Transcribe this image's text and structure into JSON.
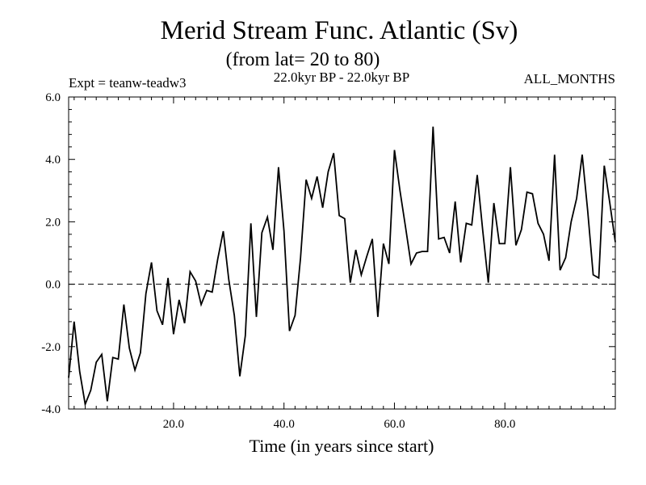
{
  "chart_data": {
    "type": "line",
    "title": "Merid Stream Func. Atlantic (Sv)",
    "subtitle": "(from lat= 20 to 80)",
    "header_left": "Expt = teanw-teadw3",
    "header_center": "22.0kyr BP - 22.0kyr BP",
    "header_right": "ALL_MONTHS",
    "xlabel": "Time (in years since start)",
    "ylabel": "",
    "xlim": [
      1,
      100
    ],
    "ylim": [
      -4.0,
      6.0
    ],
    "x_ticks": [
      20,
      40,
      60,
      80
    ],
    "x_tick_labels": [
      "20.0",
      "40.0",
      "60.0",
      "80.0"
    ],
    "y_ticks": [
      -4,
      -2,
      0,
      2,
      4,
      6
    ],
    "y_tick_labels": [
      "-4.0",
      "-2.0",
      "0.0",
      "2.0",
      "4.0",
      "6.0"
    ],
    "zero_line": "dashed",
    "series": [
      {
        "name": "Merid Stream Func. Atlantic",
        "values": [
          -3.0,
          -1.2,
          -2.8,
          -3.85,
          -3.4,
          -2.5,
          -2.25,
          -3.75,
          -2.35,
          -2.4,
          -0.65,
          -2.05,
          -2.75,
          -2.2,
          -0.3,
          0.7,
          -0.85,
          -1.3,
          0.2,
          -1.6,
          -0.5,
          -1.25,
          0.4,
          0.1,
          -0.65,
          -0.2,
          -0.25,
          0.8,
          1.7,
          0.15,
          -1.0,
          -2.95,
          -1.65,
          1.95,
          -1.05,
          1.65,
          2.15,
          1.1,
          3.75,
          1.7,
          -1.5,
          -1.0,
          0.85,
          3.35,
          2.75,
          3.45,
          2.45,
          3.6,
          4.2,
          2.2,
          2.1,
          0.05,
          1.1,
          0.3,
          0.9,
          1.45,
          -1.05,
          1.3,
          0.65,
          4.3,
          3.0,
          1.85,
          0.65,
          1.0,
          1.05,
          1.05,
          5.05,
          1.45,
          1.5,
          1.0,
          2.65,
          0.7,
          1.95,
          1.9,
          3.5,
          1.7,
          0.05,
          2.6,
          1.3,
          1.3,
          3.75,
          1.25,
          1.75,
          2.95,
          2.9,
          1.95,
          1.6,
          0.75,
          4.15,
          0.45,
          0.85,
          2.0,
          2.75,
          4.15,
          2.35,
          0.3,
          0.2,
          3.8,
          2.6,
          1.35
        ]
      }
    ]
  }
}
